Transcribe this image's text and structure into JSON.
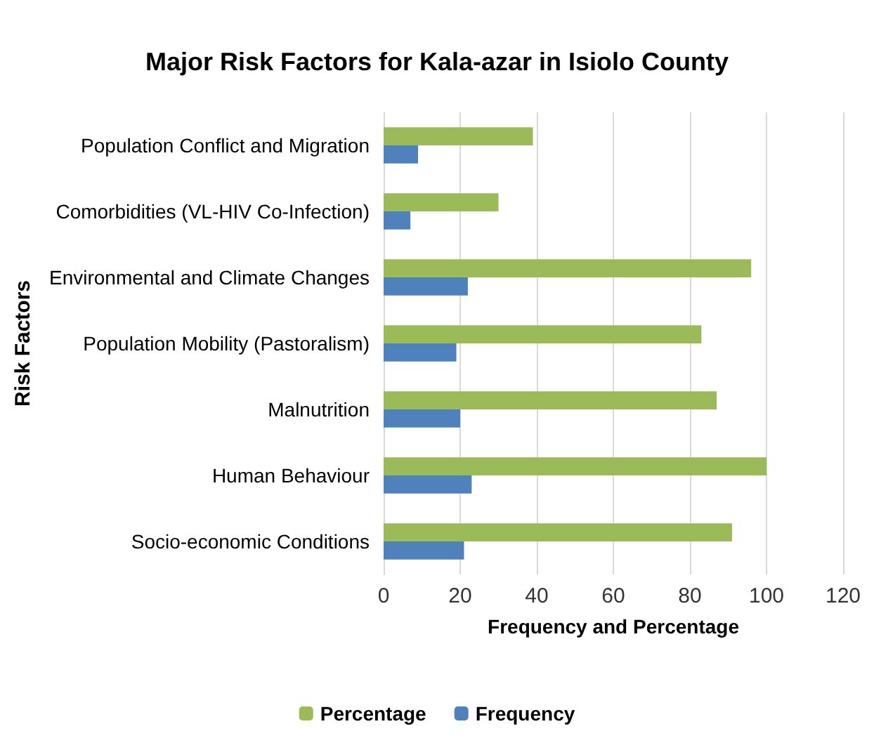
{
  "chart_data": {
    "type": "bar",
    "orientation": "horizontal",
    "title": "Major Risk Factors for Kala-azar in Isiolo County",
    "categories": [
      "Population Conflict and Migration",
      "Comorbidities (VL-HIV Co-Infection)",
      "Environmental and Climate Changes",
      "Population Mobility (Pastoralism)",
      "Malnutrition",
      "Human Behaviour",
      "Socio-economic Conditions"
    ],
    "series": [
      {
        "name": "Percentage",
        "color": "#9bbb59",
        "values": [
          39,
          30,
          96,
          83,
          87,
          100,
          91
        ]
      },
      {
        "name": "Frequency",
        "color": "#4f81bd",
        "values": [
          9,
          7,
          22,
          19,
          20,
          23,
          21
        ]
      }
    ],
    "xlabel": "Frequency and Percentage",
    "ylabel": "Risk Factors",
    "xlim": [
      0,
      120
    ],
    "xticks": [
      0,
      20,
      40,
      60,
      80,
      100,
      120
    ],
    "grid": "x",
    "legend": "bottom"
  }
}
